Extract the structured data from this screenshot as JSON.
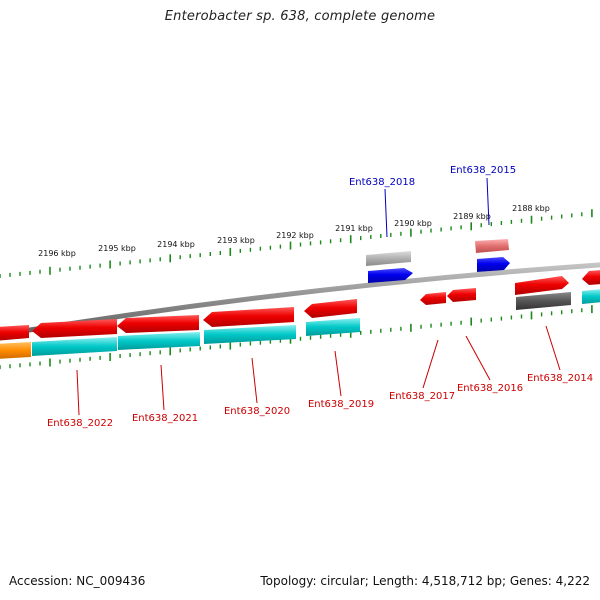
{
  "title": "Enterobacter sp. 638, complete genome",
  "footer": {
    "accession": "Accession: NC_009436",
    "summary": "Topology: circular; Length: 4,518,712 bp; Genes: 4,222"
  },
  "colors": {
    "backbone": "#888888",
    "tick": "#1a8a1a",
    "gene_red": "#ee0000",
    "gene_pink": "#e06060",
    "gene_blue": "#0000ee",
    "gene_grey": "#aaaaaa",
    "gene_dark": "#555555",
    "cyan": "#00c8c8",
    "orange": "#ff8c00",
    "label_red": "#cc0000",
    "label_blue": "#0000bb"
  },
  "scale": {
    "unit": "kbp",
    "labels": [
      "2196 kbp",
      "2195 kbp",
      "2194 kbp",
      "2193 kbp",
      "2192 kbp",
      "2191 kbp",
      "2190 kbp",
      "2189 kbp",
      "2188 kbp"
    ]
  },
  "gene_labels": {
    "above": [
      "Ent638_2018",
      "Ent638_2015"
    ],
    "below": [
      "Ent638_2022",
      "Ent638_2021",
      "Ent638_2020",
      "Ent638_2019",
      "Ent638_2017",
      "Ent638_2016",
      "Ent638_2014"
    ]
  }
}
